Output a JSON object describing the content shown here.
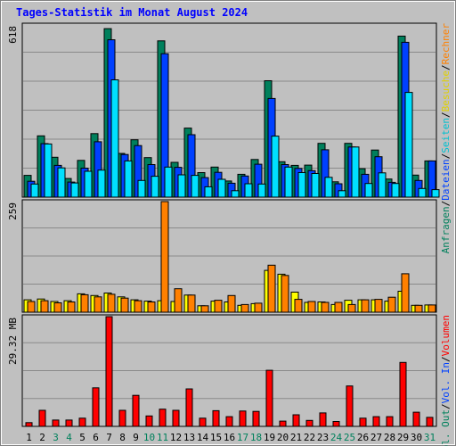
{
  "title": "Tages-Statistik im Monat August 2024",
  "colors": {
    "background": "#c0c0c0",
    "title": "#0000ff",
    "hits": "#00805c",
    "files": "#0040ff",
    "pages": "#00e0ff",
    "visits": "#ffff00",
    "sites": "#ff8000",
    "volume": "#ff0000",
    "weekend_day_label": "#00805c",
    "weekday_label": "#000000"
  },
  "legend_right_top": [
    {
      "text": "Anfragen",
      "color": "#00805c"
    },
    {
      "text": "/",
      "color": "#000000"
    },
    {
      "text": "Dateien",
      "color": "#0040ff"
    },
    {
      "text": "/",
      "color": "#000000"
    },
    {
      "text": "Seiten",
      "color": "#00c0d0"
    },
    {
      "text": "/",
      "color": "#000000"
    },
    {
      "text": "Besuche",
      "color": "#e0d000"
    },
    {
      "text": "/",
      "color": "#000000"
    },
    {
      "text": "Rechner",
      "color": "#ff8000"
    }
  ],
  "legend_right_bottom": [
    {
      "text": "Vol. Out",
      "color": "#00805c"
    },
    {
      "text": "/",
      "color": "#000000"
    },
    {
      "text": "Vol. In",
      "color": "#0040ff"
    },
    {
      "text": "/",
      "color": "#000000"
    },
    {
      "text": "Volumen",
      "color": "#ff0000"
    }
  ],
  "chart_data": [
    {
      "type": "bar",
      "panel": "hits-files-pages",
      "max_label": "618",
      "ylim": [
        0,
        618
      ],
      "categories": [
        "1",
        "2",
        "3",
        "4",
        "5",
        "6",
        "7",
        "8",
        "9",
        "10",
        "11",
        "12",
        "13",
        "14",
        "15",
        "16",
        "17",
        "18",
        "19",
        "20",
        "21",
        "22",
        "23",
        "24",
        "25",
        "26",
        "27",
        "28",
        "29",
        "30",
        "31"
      ],
      "weekend_days": [
        3,
        4,
        10,
        11,
        17,
        18,
        24,
        25,
        31
      ],
      "series": [
        {
          "name": "Anfragen",
          "values": [
            78,
            220,
            143,
            67,
            132,
            228,
            605,
            157,
            206,
            142,
            561,
            125,
            248,
            88,
            108,
            58,
            82,
            135,
            418,
            127,
            114,
            115,
            193,
            55,
            193,
            102,
            169,
            65,
            578,
            79,
            130
          ]
        },
        {
          "name": "Dateien",
          "values": [
            57,
            192,
            114,
            54,
            104,
            199,
            565,
            153,
            185,
            117,
            515,
            107,
            224,
            70,
            89,
            50,
            76,
            118,
            354,
            117,
            103,
            95,
            170,
            48,
            180,
            82,
            145,
            53,
            556,
            60,
            130
          ]
        },
        {
          "name": "Seiten",
          "values": [
            47,
            191,
            105,
            51,
            93,
            97,
            421,
            130,
            60,
            75,
            108,
            80,
            78,
            37,
            64,
            23,
            48,
            47,
            219,
            108,
            88,
            85,
            71,
            23,
            180,
            49,
            87,
            49,
            376,
            31,
            27
          ]
        }
      ]
    },
    {
      "type": "bar",
      "panel": "visits-sites",
      "max_label": "259",
      "ylim": [
        0,
        259
      ],
      "categories": [
        "1",
        "2",
        "3",
        "4",
        "5",
        "6",
        "7",
        "8",
        "9",
        "10",
        "11",
        "12",
        "13",
        "14",
        "15",
        "16",
        "17",
        "18",
        "19",
        "20",
        "21",
        "22",
        "23",
        "24",
        "25",
        "26",
        "27",
        "28",
        "29",
        "30",
        "31"
      ],
      "series": [
        {
          "name": "Besuche",
          "values": [
            29,
            31,
            25,
            27,
            43,
            39,
            45,
            36,
            29,
            26,
            27,
            25,
            40,
            15,
            26,
            24,
            16,
            20,
            98,
            89,
            47,
            23,
            24,
            18,
            28,
            29,
            29,
            26,
            49,
            16,
            17
          ]
        },
        {
          "name": "Rechner",
          "values": [
            25,
            27,
            22,
            24,
            41,
            36,
            42,
            33,
            27,
            24,
            259,
            55,
            40,
            15,
            28,
            39,
            18,
            21,
            110,
            86,
            30,
            25,
            23,
            23,
            18,
            29,
            30,
            35,
            90,
            16,
            17
          ]
        }
      ]
    },
    {
      "type": "bar",
      "panel": "volume",
      "max_label": "29.32 MB",
      "ylim": [
        0,
        29.32
      ],
      "categories": [
        "1",
        "2",
        "3",
        "4",
        "5",
        "6",
        "7",
        "8",
        "9",
        "10",
        "11",
        "12",
        "13",
        "14",
        "15",
        "16",
        "17",
        "18",
        "19",
        "20",
        "21",
        "22",
        "23",
        "24",
        "25",
        "26",
        "27",
        "28",
        "29",
        "30",
        "31"
      ],
      "series": [
        {
          "name": "Volumen",
          "values": [
            1.0,
            4.3,
            1.7,
            1.7,
            2.2,
            10.3,
            29.32,
            4.3,
            8.3,
            2.8,
            4.6,
            4.3,
            10.0,
            2.2,
            4.2,
            2.6,
            4.1,
            4.0,
            15.0,
            1.4,
            3.1,
            1.6,
            3.6,
            1.3,
            10.8,
            2.2,
            2.6,
            2.6,
            17.1,
            3.8,
            2.4
          ]
        }
      ]
    }
  ]
}
